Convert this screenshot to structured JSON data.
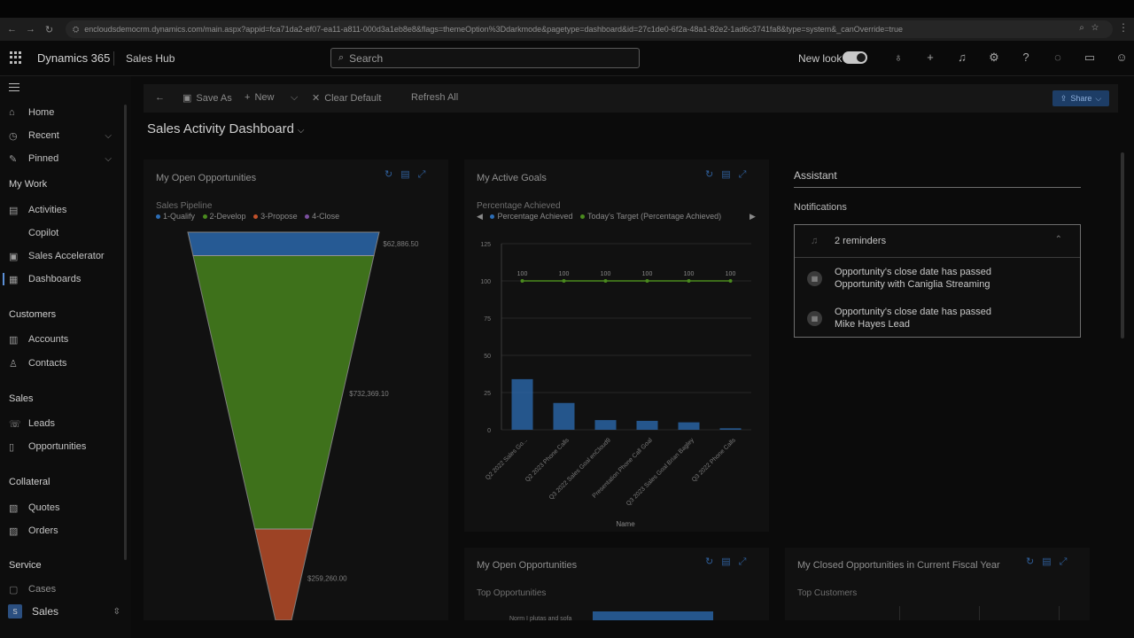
{
  "browser": {
    "url": "encloudsdemocrm.dynamics.com/main.aspx?appid=fca71da2-ef07-ea11-a811-000d3a1eb8e8&flags=themeOption%3Ddarkmode&pagetype=dashboard&id=27c1de0-6f2a-48a1-82e2-1ad6c3741fa8&type=system&_canOverride=true"
  },
  "app": {
    "brand": "Dynamics 365",
    "hub": "Sales Hub",
    "search_placeholder": "Search",
    "new_look_label": "New look"
  },
  "sidebar": {
    "items_top": [
      {
        "label": "Home",
        "icon": "home-icon"
      },
      {
        "label": "Recent",
        "icon": "clock-icon"
      },
      {
        "label": "Pinned",
        "icon": "pin-icon"
      }
    ],
    "groups": [
      {
        "title": "My Work",
        "items": [
          "Activities",
          "Copilot",
          "Sales Accelerator",
          "Dashboards"
        ]
      },
      {
        "title": "Customers",
        "items": [
          "Accounts",
          "Contacts"
        ]
      },
      {
        "title": "Sales",
        "items": [
          "Leads",
          "Opportunities"
        ]
      },
      {
        "title": "Collateral",
        "items": [
          "Quotes",
          "Orders"
        ]
      },
      {
        "title": "Service",
        "items": [
          "Cases"
        ]
      }
    ],
    "area_badge": "S",
    "area_label": "Sales"
  },
  "commandbar": {
    "save_as": "Save As",
    "new": "New",
    "clear_default": "Clear Default",
    "refresh_all": "Refresh All",
    "share": "Share"
  },
  "dashboard": {
    "title": "Sales Activity Dashboard"
  },
  "panels": {
    "open_opps": {
      "title": "My Open Opportunities",
      "subtitle": "Sales Pipeline",
      "legend": [
        {
          "name": "1-Qualify",
          "color": "#2c6db5"
        },
        {
          "name": "2-Develop",
          "color": "#4a8a1e"
        },
        {
          "name": "3-Propose",
          "color": "#c0502a"
        },
        {
          "name": "4-Close",
          "color": "#7a4f9e"
        }
      ]
    },
    "goals": {
      "title": "My Active Goals",
      "subtitle": "Percentage Achieved",
      "legend": [
        {
          "name": "Percentage Achieved",
          "color": "#2c6db5"
        },
        {
          "name": "Today's Target (Percentage Achieved)",
          "color": "#4a8a1e"
        }
      ],
      "xlabel": "Name"
    },
    "open_opps2": {
      "title": "My Open Opportunities",
      "subtitle": "Top Opportunities",
      "first_bar_label": "Norm I plutas and sofa"
    },
    "closed_opps": {
      "title": "My Closed Opportunities in Current Fiscal Year",
      "subtitle": "Top Customers"
    }
  },
  "assistant": {
    "title": "Assistant",
    "notifications_label": "Notifications",
    "reminders_count": "2 reminders",
    "reminders": [
      {
        "line1": "Opportunity's close date has passed",
        "line2": "Opportunity with Caniglia Streaming"
      },
      {
        "line1": "Opportunity's close date has passed",
        "line2": "Mike Hayes Lead"
      }
    ]
  },
  "chart_data": [
    {
      "type": "funnel",
      "title": "Sales Pipeline",
      "categories": [
        "1-Qualify",
        "2-Develop",
        "3-Propose"
      ],
      "values": [
        62886.5,
        732369.1,
        259260.0
      ],
      "labels": [
        "$62,886.50",
        "$732,369.10",
        "$259,260.00"
      ],
      "colors": [
        "#2c6db5",
        "#4a8a1e",
        "#c0502a"
      ]
    },
    {
      "type": "bar",
      "title": "Percentage Achieved",
      "categories": [
        "Q2 2022 Sales Go...",
        "Q2 2023 Phone Calls",
        "Q3 2022 Sales Goal enCloud9",
        "Presentation Phone Call Goal",
        "Q3 2023 Sales Goal Brian Bagley",
        "Q3 2022 Phone Calls"
      ],
      "series": [
        {
          "name": "Percentage Achieved",
          "type": "bar",
          "values": [
            34,
            18,
            6.5,
            6,
            5,
            1
          ]
        },
        {
          "name": "Today's Target (Percentage Achieved)",
          "type": "line",
          "values": [
            100,
            100,
            100,
            100,
            100,
            100
          ]
        }
      ],
      "yticks": [
        0,
        25,
        50,
        75,
        100,
        125
      ],
      "ylim": [
        0,
        125
      ],
      "xlabel": "Name",
      "colors": {
        "bar": "#2c6db5",
        "target": "#4a8a1e"
      }
    }
  ]
}
